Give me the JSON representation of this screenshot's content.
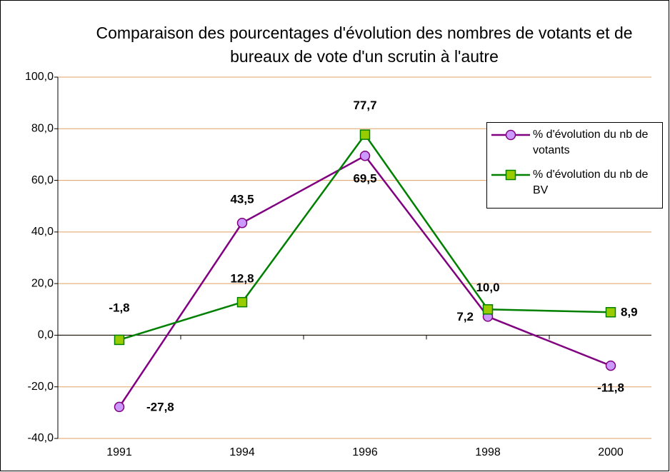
{
  "chart_data": {
    "type": "line",
    "title": "Comparaison des pourcentages d'évolution des nombres de votants et de bureaux de vote d'un scrutin à l'autre",
    "categories": [
      "1991",
      "1994",
      "1996",
      "1998",
      "2000"
    ],
    "series": [
      {
        "name": "% d'évolution du nb de votants",
        "color": "#800080",
        "marker_color": "#cc99ff",
        "marker": "circle",
        "values": [
          -27.8,
          43.5,
          69.5,
          7.2,
          -11.8
        ],
        "value_labels": [
          "-27,8",
          "43,5",
          "69,5",
          "7,2",
          "-11,8"
        ]
      },
      {
        "name": "% d'évolution du nb de BV",
        "color": "#008000",
        "marker_color": "#99cc00",
        "marker": "square",
        "values": [
          -1.8,
          12.8,
          77.7,
          10.0,
          8.9
        ],
        "value_labels": [
          "-1,8",
          "12,8",
          "77,7",
          "10,0",
          "8,9"
        ]
      }
    ],
    "ylim": [
      -40,
      100
    ],
    "yticks": [
      {
        "value": -40,
        "label": "-40,0"
      },
      {
        "value": -20,
        "label": "-20,0"
      },
      {
        "value": 0,
        "label": "0,0"
      },
      {
        "value": 20,
        "label": "20,0"
      },
      {
        "value": 40,
        "label": "40,0"
      },
      {
        "value": 60,
        "label": "60,0"
      },
      {
        "value": 80,
        "label": "80,0"
      },
      {
        "value": 100,
        "label": "100,0"
      }
    ],
    "grid": true,
    "grid_color": "#e0a060",
    "legend": "upper right"
  }
}
